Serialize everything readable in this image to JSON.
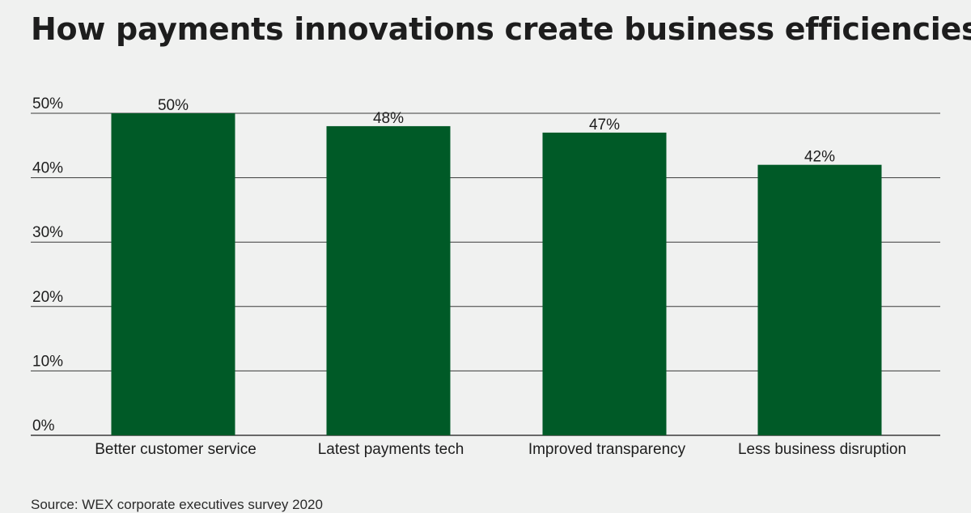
{
  "chart_data": {
    "type": "bar",
    "title": "How payments innovations create business efficiencies",
    "categories": [
      "Better customer service",
      "Latest payments tech",
      "Improved transparency",
      "Less business disruption"
    ],
    "values": [
      50,
      48,
      47,
      42
    ],
    "data_labels": [
      "50%",
      "48%",
      "47%",
      "42%"
    ],
    "ylim": [
      0,
      50
    ],
    "y_ticks": [
      0,
      10,
      20,
      30,
      40,
      50
    ],
    "y_tick_labels": [
      "0%",
      "10%",
      "20%",
      "30%",
      "40%",
      "50%"
    ],
    "xlabel": "",
    "ylabel": "",
    "grid": true,
    "bar_color": "#005a27",
    "grid_color": "#3a3a3a",
    "source": "Source: WEX corporate executives survey 2020"
  }
}
